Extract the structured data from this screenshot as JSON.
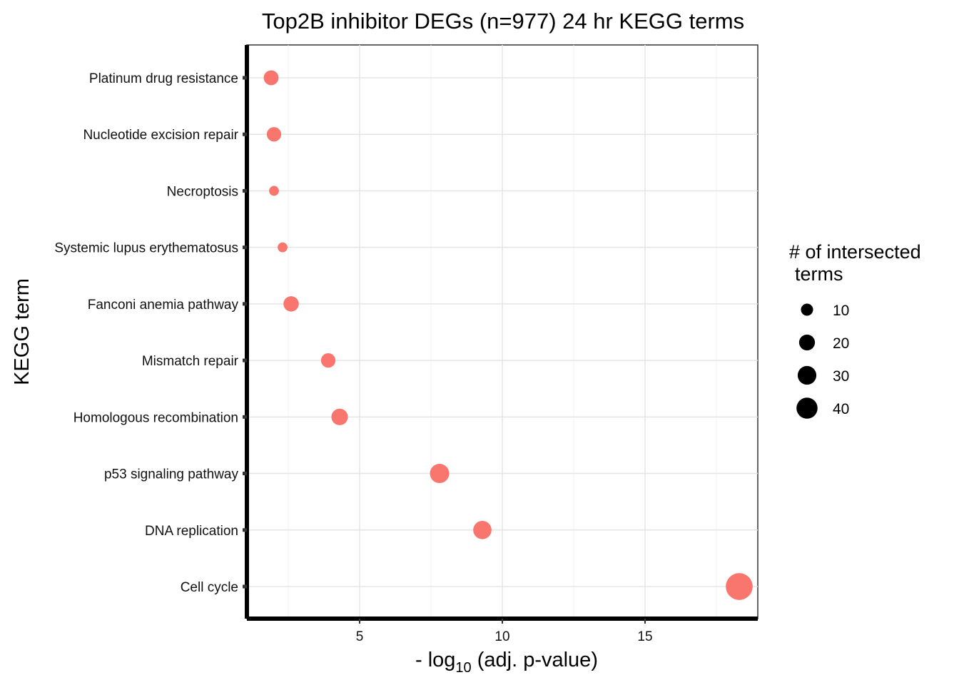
{
  "chart_data": {
    "type": "scatter",
    "title": "Top2B inhibitor DEGs (n=977) 24 hr KEGG terms",
    "xlabel_prefix": "- log",
    "xlabel_sub": "10",
    "xlabel_suffix": " (adj. p-value)",
    "ylabel": "KEGG term",
    "xlim": [
      1.05,
      18.95
    ],
    "x_ticks": [
      5,
      10,
      15
    ],
    "grid": true,
    "legend_placement": "right",
    "legend_title_line1": "# of intersected",
    "legend_title_line2": "terms",
    "legend_sizes": [
      10,
      20,
      30,
      40
    ],
    "point_color": "#F8766D",
    "points": [
      {
        "term": "Platinum drug resistance",
        "x": 1.9,
        "size": 13
      },
      {
        "term": "Nucleotide excision repair",
        "x": 2.0,
        "size": 12
      },
      {
        "term": "Necroptosis",
        "x": 2.0,
        "size": 4
      },
      {
        "term": "Systemic lupus erythematosus",
        "x": 2.3,
        "size": 4
      },
      {
        "term": "Fanconi anemia pathway",
        "x": 2.6,
        "size": 14
      },
      {
        "term": "Mismatch repair",
        "x": 3.9,
        "size": 12
      },
      {
        "term": "Homologous recombination",
        "x": 4.3,
        "size": 17
      },
      {
        "term": "p53 signaling pathway",
        "x": 7.8,
        "size": 25
      },
      {
        "term": "DNA replication",
        "x": 9.3,
        "size": 22
      },
      {
        "term": "Cell cycle",
        "x": 18.3,
        "size": 55
      }
    ]
  }
}
